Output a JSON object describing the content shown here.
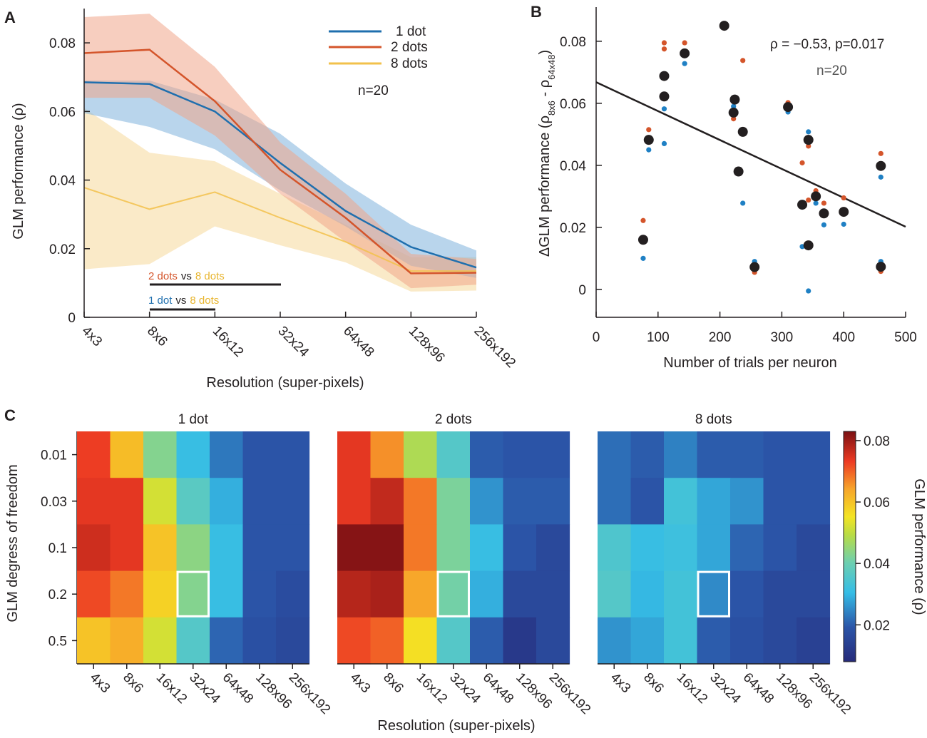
{
  "chart_data": [
    {
      "panel": "A",
      "type": "line",
      "xlabel": "Resolution (super-pixels)",
      "ylabel": "GLM performance (ρ)",
      "categories": [
        "4x3",
        "8x6",
        "16x12",
        "32x24",
        "64x48",
        "128x96",
        "256x192"
      ],
      "ylim": [
        0,
        0.09
      ],
      "yticks": [
        0,
        0.02,
        0.04,
        0.06,
        0.08
      ],
      "ytick_labels": [
        "0",
        "0.02",
        "0.04",
        "0.06",
        "0.08"
      ],
      "series": [
        {
          "name": "1 dot",
          "color": "#1f6fae",
          "band_color": "#7fb2dd",
          "values": [
            0.0685,
            0.068,
            0.06,
            0.045,
            0.031,
            0.0205,
            0.0145
          ],
          "upper": [
            0.069,
            0.069,
            0.0635,
            0.0535,
            0.039,
            0.027,
            0.0195
          ],
          "lower": [
            0.0595,
            0.0555,
            0.049,
            0.037,
            0.0265,
            0.015,
            0.0115
          ]
        },
        {
          "name": "2 dots",
          "color": "#d4552b",
          "band_color": "#f0a58a",
          "values": [
            0.077,
            0.078,
            0.063,
            0.043,
            0.029,
            0.0128,
            0.013
          ],
          "upper": [
            0.0875,
            0.0885,
            0.073,
            0.051,
            0.036,
            0.0185,
            0.017
          ],
          "lower": [
            0.064,
            0.064,
            0.053,
            0.036,
            0.022,
            0.0085,
            0.0095
          ]
        },
        {
          "name": "8 dots",
          "color": "#f2c14b",
          "band_color": "#f6d89a",
          "values": [
            0.0378,
            0.0315,
            0.0365,
            0.029,
            0.022,
            0.0135,
            0.0135
          ],
          "upper": [
            0.061,
            0.048,
            0.0455,
            0.036,
            0.027,
            0.0175,
            0.0175
          ],
          "lower": [
            0.014,
            0.0155,
            0.0265,
            0.021,
            0.016,
            0.0075,
            0.0078
          ]
        }
      ],
      "legend": [
        "1 dot",
        "2 dots",
        "8 dots"
      ],
      "annotation": "n=20",
      "significance": [
        {
          "label_a": "2 dots",
          "vs": "vs",
          "label_b": "8 dots",
          "from": "8x6",
          "to": "32x24"
        },
        {
          "label_a": "1 dot",
          "vs": "vs",
          "label_b": "8 dots",
          "from": "8x6",
          "to": "16x12"
        }
      ]
    },
    {
      "panel": "B",
      "type": "scatter",
      "xlabel": "Number of trials per neuron",
      "ylabel_main": "ΔGLM performance (ρ",
      "ylabel_sub1": "8x6",
      "ylabel_mid": " - ρ",
      "ylabel_sub2": "64x48",
      "ylabel_end": ")",
      "xlim": [
        0,
        500
      ],
      "ylim": [
        -0.009,
        0.091
      ],
      "xticks": [
        0,
        100,
        200,
        300,
        400,
        500
      ],
      "xtick_labels": [
        "0",
        "100",
        "200",
        "300",
        "400",
        "500"
      ],
      "yticks": [
        0,
        0.02,
        0.04,
        0.06,
        0.08
      ],
      "ytick_labels": [
        "0",
        "0.02",
        "0.04",
        "0.06",
        "0.08"
      ],
      "annotation_stat": "ρ = −0.53, p=0.017",
      "annotation_n": "n=20",
      "fit_line": {
        "x": [
          0,
          500
        ],
        "y": [
          0.0668,
          0.0202
        ]
      },
      "points": [
        {
          "x": 76,
          "combined": 0.016,
          "two_dots": 0.0222,
          "one_dot": 0.01
        },
        {
          "x": 85,
          "combined": 0.0482,
          "two_dots": 0.0515,
          "one_dot": 0.045
        },
        {
          "x": 110,
          "combined": 0.0688,
          "two_dots": 0.0795,
          "one_dot": 0.047
        },
        {
          "x": 110,
          "combined": 0.0622,
          "two_dots": 0.0775,
          "one_dot": 0.0582
        },
        {
          "x": 143,
          "combined": 0.0761,
          "two_dots": 0.0795,
          "one_dot": 0.0728
        },
        {
          "x": 207,
          "combined": 0.085,
          "two_dots": 0.085,
          "one_dot": 0.085
        },
        {
          "x": 222,
          "combined": 0.057,
          "two_dots": 0.055,
          "one_dot": 0.059
        },
        {
          "x": 224,
          "combined": 0.0612,
          "two_dots": 0.0612,
          "one_dot": 0.0612
        },
        {
          "x": 230,
          "combined": 0.038,
          "two_dots": 0.038,
          "one_dot": 0.038
        },
        {
          "x": 237,
          "combined": 0.0508,
          "two_dots": 0.0738,
          "one_dot": 0.0278
        },
        {
          "x": 256,
          "combined": 0.0072,
          "two_dots": 0.0055,
          "one_dot": 0.009
        },
        {
          "x": 310,
          "combined": 0.0588,
          "two_dots": 0.0602,
          "one_dot": 0.0572
        },
        {
          "x": 333,
          "combined": 0.0273,
          "two_dots": 0.0408,
          "one_dot": 0.0138
        },
        {
          "x": 343,
          "combined": 0.0482,
          "two_dots": 0.0462,
          "one_dot": 0.0508
        },
        {
          "x": 343,
          "combined": 0.0142,
          "two_dots": 0.0288,
          "one_dot": -0.0005
        },
        {
          "x": 355,
          "combined": 0.03,
          "two_dots": 0.0318,
          "one_dot": 0.0278
        },
        {
          "x": 368,
          "combined": 0.0245,
          "two_dots": 0.0278,
          "one_dot": 0.0208
        },
        {
          "x": 400,
          "combined": 0.025,
          "two_dots": 0.0295,
          "one_dot": 0.021
        },
        {
          "x": 460,
          "combined": 0.0398,
          "two_dots": 0.0438,
          "one_dot": 0.0362
        },
        {
          "x": 460,
          "combined": 0.0073,
          "two_dots": 0.0058,
          "one_dot": 0.009
        }
      ],
      "colors": {
        "combined": "#231f20",
        "two_dots": "#d4552b",
        "one_dot": "#1f80c4"
      }
    },
    {
      "panel": "C",
      "type": "heatmap",
      "xlabel": "Resolution (super-pixels)",
      "ylabel": "GLM degress of freedom",
      "columns": [
        "4x3",
        "8x6",
        "16x12",
        "32x24",
        "64x48",
        "128x96",
        "256x192"
      ],
      "rows": [
        "0.01",
        "0.03",
        "0.1",
        "0.2",
        "0.5"
      ],
      "highlight": {
        "row": "0.2",
        "column": "32x24"
      },
      "colorbar": {
        "label": "GLM performance (ρ)",
        "range": [
          0.008,
          0.083
        ],
        "ticks": [
          0.02,
          0.04,
          0.06,
          0.08
        ],
        "tick_labels": [
          "0.02",
          "0.04",
          "0.06",
          "0.08"
        ]
      },
      "maps": [
        {
          "title": "1 dot",
          "values": [
            [
              0.073,
              0.061,
              0.043,
              0.031,
              0.023,
              0.019,
              0.019
            ],
            [
              0.074,
              0.074,
              0.052,
              0.037,
              0.029,
              0.019,
              0.019
            ],
            [
              0.076,
              0.074,
              0.06,
              0.044,
              0.031,
              0.019,
              0.019
            ],
            [
              0.072,
              0.068,
              0.058,
              0.043,
              0.031,
              0.019,
              0.017
            ],
            [
              0.06,
              0.063,
              0.052,
              0.036,
              0.021,
              0.018,
              0.016
            ]
          ]
        },
        {
          "title": "2 dots",
          "values": [
            [
              0.074,
              0.066,
              0.048,
              0.036,
              0.02,
              0.019,
              0.019
            ],
            [
              0.074,
              0.077,
              0.068,
              0.042,
              0.026,
              0.02,
              0.02
            ],
            [
              0.082,
              0.082,
              0.068,
              0.042,
              0.031,
              0.019,
              0.016
            ],
            [
              0.078,
              0.079,
              0.064,
              0.041,
              0.029,
              0.016,
              0.016
            ],
            [
              0.072,
              0.07,
              0.056,
              0.036,
              0.02,
              0.012,
              0.016
            ]
          ]
        },
        {
          "title": "8 dots",
          "values": [
            [
              0.022,
              0.02,
              0.024,
              0.02,
              0.02,
              0.019,
              0.019
            ],
            [
              0.022,
              0.019,
              0.033,
              0.028,
              0.026,
              0.019,
              0.019
            ],
            [
              0.035,
              0.031,
              0.032,
              0.028,
              0.021,
              0.019,
              0.016
            ],
            [
              0.036,
              0.03,
              0.033,
              0.025,
              0.019,
              0.016,
              0.016
            ],
            [
              0.026,
              0.028,
              0.033,
              0.02,
              0.018,
              0.016,
              0.014
            ]
          ]
        }
      ]
    }
  ]
}
